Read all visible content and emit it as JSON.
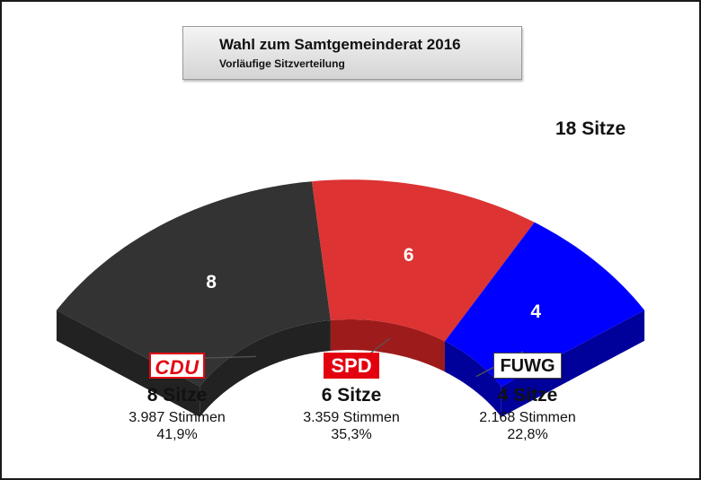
{
  "title": "Wahl zum Samtgemeinderat 2016",
  "subtitle": "Vorläufige Sitzverteilung",
  "total_label": "18 Sitze",
  "parties": [
    {
      "logo": "CDU",
      "seats_label": "8 Sitze",
      "votes_label": "3.987 Stimmen",
      "pct_label": "41,9%"
    },
    {
      "logo": "SPD",
      "seats_label": "6 Sitze",
      "votes_label": "3.359 Stimmen",
      "pct_label": "35,3%"
    },
    {
      "logo": "FUWG",
      "seats_label": "4 Sitze",
      "votes_label": "2.168 Stimmen",
      "pct_label": "22,8%"
    }
  ],
  "chart_data": {
    "type": "pie",
    "variant": "3d-half-donut seat distribution",
    "total": 18,
    "series": [
      {
        "name": "CDU",
        "value": 8,
        "label": "8",
        "color": "#333333",
        "side_color": "#222222",
        "leader_color": "#555555"
      },
      {
        "name": "SPD",
        "value": 6,
        "label": "6",
        "color": "#dd3333",
        "side_color": "#9e1b1b",
        "leader_color": "#555555"
      },
      {
        "name": "FUWG",
        "value": 4,
        "label": "4",
        "color": "#0000ff",
        "side_color": "#00009a",
        "leader_color": "#555555"
      }
    ]
  }
}
